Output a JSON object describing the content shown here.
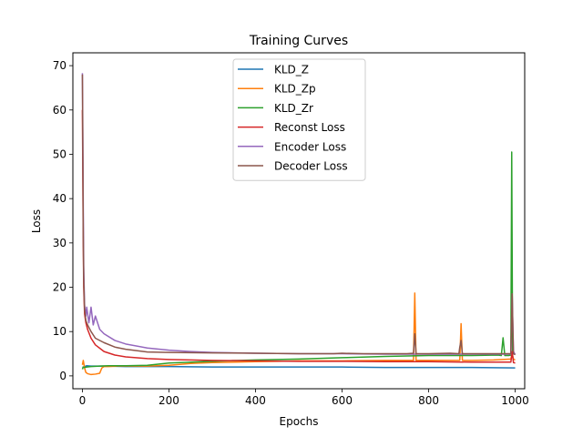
{
  "chart_data": {
    "type": "line",
    "title": "Training Curves",
    "xlabel": "Epochs",
    "ylabel": "Loss",
    "xlim": [
      -22,
      1022
    ],
    "ylim": [
      -2.9,
      72.9
    ],
    "xticks": [
      0,
      200,
      400,
      600,
      800,
      1000
    ],
    "yticks": [
      0,
      10,
      20,
      30,
      40,
      50,
      60,
      70
    ],
    "grid": false,
    "legend_position": "top-center",
    "series": [
      {
        "name": "KLD_Z",
        "color": "#1f77b4",
        "x": [
          0,
          2,
          5,
          10,
          20,
          40,
          60,
          100,
          150,
          200,
          300,
          400,
          500,
          600,
          700,
          800,
          900,
          1000
        ],
        "y": [
          1.9,
          2.0,
          2.1,
          2.3,
          2.2,
          2.2,
          2.2,
          2.1,
          2.1,
          2.1,
          2.0,
          2.0,
          2.0,
          2.0,
          1.9,
          1.9,
          1.9,
          1.8
        ]
      },
      {
        "name": "KLD_Zp",
        "color": "#ff7f0e",
        "x": [
          0,
          2,
          5,
          8,
          12,
          20,
          30,
          40,
          45,
          50,
          60,
          80,
          100,
          150,
          200,
          250,
          300,
          400,
          450,
          500,
          600,
          700,
          765,
          768,
          771,
          775,
          800,
          850,
          872,
          875,
          878,
          900,
          950,
          990,
          993,
          996,
          1000
        ],
        "y": [
          2.5,
          3.5,
          1.8,
          0.8,
          0.5,
          0.3,
          0.4,
          0.6,
          1.8,
          2.1,
          2.1,
          2.2,
          2.2,
          2.2,
          2.4,
          2.8,
          3.0,
          3.2,
          3.3,
          3.4,
          3.4,
          3.5,
          3.5,
          18.7,
          3.5,
          3.5,
          3.5,
          3.5,
          3.5,
          11.8,
          3.5,
          3.5,
          3.6,
          3.8,
          5.0,
          3.8,
          3.6
        ]
      },
      {
        "name": "KLD_Zr",
        "color": "#2ca02c",
        "x": [
          0,
          2,
          5,
          10,
          20,
          40,
          60,
          100,
          150,
          200,
          300,
          400,
          500,
          600,
          700,
          800,
          900,
          960,
          968,
          972,
          976,
          985,
          990,
          992,
          994,
          997,
          1000
        ],
        "y": [
          1.5,
          2.0,
          1.9,
          2.0,
          2.1,
          2.2,
          2.3,
          2.3,
          2.4,
          2.9,
          3.3,
          3.6,
          3.8,
          4.1,
          4.4,
          4.6,
          4.6,
          4.7,
          4.6,
          8.6,
          4.6,
          4.6,
          4.7,
          50.5,
          5.5,
          5.0,
          4.8
        ]
      },
      {
        "name": "Reconst Loss",
        "color": "#d62728",
        "x": [
          0,
          1,
          2,
          3,
          5,
          8,
          12,
          20,
          30,
          50,
          75,
          100,
          150,
          200,
          300,
          400,
          500,
          600,
          700,
          800,
          900,
          990,
          993,
          996,
          1000
        ],
        "y": [
          60.0,
          45.0,
          30.0,
          20.0,
          14.0,
          12.0,
          10.5,
          8.5,
          7.0,
          5.5,
          4.7,
          4.3,
          3.9,
          3.7,
          3.5,
          3.4,
          3.3,
          3.3,
          3.2,
          3.2,
          3.1,
          3.1,
          5.5,
          3.0,
          2.9
        ]
      },
      {
        "name": "Encoder Loss",
        "color": "#9467bd",
        "x": [
          0,
          1,
          2,
          3,
          5,
          8,
          10,
          15,
          20,
          25,
          30,
          40,
          50,
          75,
          100,
          150,
          200,
          250,
          300,
          400,
          500,
          600,
          700,
          770,
          800,
          900,
          990,
          993,
          996,
          1000
        ],
        "y": [
          68.3,
          55.0,
          38.0,
          25.0,
          16.0,
          13.5,
          15.5,
          12.0,
          15.5,
          11.5,
          13.5,
          10.5,
          9.5,
          8.0,
          7.2,
          6.3,
          5.8,
          5.5,
          5.3,
          5.1,
          5.0,
          5.0,
          4.9,
          4.9,
          4.9,
          4.9,
          4.9,
          18.5,
          5.5,
          4.8
        ]
      },
      {
        "name": "Decoder Loss",
        "color": "#8c564b",
        "x": [
          0,
          1,
          2,
          3,
          5,
          8,
          12,
          20,
          30,
          50,
          75,
          100,
          150,
          200,
          300,
          400,
          500,
          580,
          600,
          650,
          700,
          750,
          765,
          768,
          771,
          775,
          800,
          850,
          870,
          872,
          875,
          878,
          900,
          950,
          990,
          993,
          996,
          1000
        ],
        "y": [
          68.0,
          50.0,
          32.0,
          22.0,
          15.0,
          12.5,
          11.5,
          10.0,
          8.5,
          7.5,
          6.5,
          6.0,
          5.4,
          5.3,
          5.2,
          5.1,
          5.0,
          5.0,
          5.1,
          5.0,
          5.0,
          5.0,
          5.1,
          9.5,
          5.0,
          5.0,
          5.0,
          5.1,
          5.0,
          6.5,
          8.0,
          5.0,
          5.0,
          5.0,
          5.0,
          18.5,
          5.0,
          4.8
        ]
      }
    ]
  }
}
